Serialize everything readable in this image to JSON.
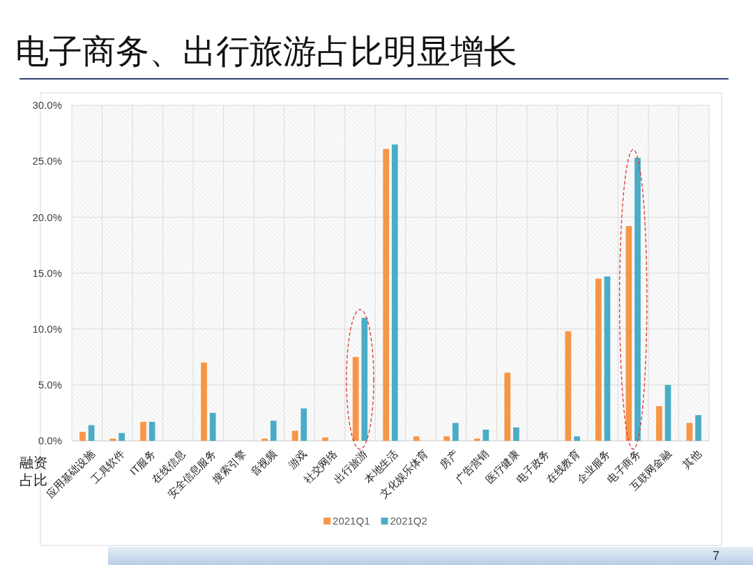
{
  "chart_data": {
    "type": "bar",
    "title": "电子商务、出行旅游占比明显增长",
    "ylabel": "融资占比",
    "categories": [
      "应用基础设施",
      "工具软件",
      "IT服务",
      "在线信息",
      "安全信息服务",
      "搜索引擎",
      "音视频",
      "游戏",
      "社交网络",
      "出行旅游",
      "本地生活",
      "文化娱乐体育",
      "房产",
      "广告营销",
      "医疗健康",
      "电子政务",
      "在线教育",
      "企业服务",
      "电子商务",
      "互联网金融",
      "其他"
    ],
    "series": [
      {
        "name": "2021Q1",
        "color": "#f79646",
        "values": [
          0.8,
          0.2,
          1.7,
          null,
          7.0,
          null,
          0.2,
          0.9,
          0.3,
          7.5,
          26.1,
          0.4,
          0.4,
          0.2,
          6.1,
          null,
          9.8,
          14.5,
          19.2,
          3.1,
          1.6
        ]
      },
      {
        "name": "2021Q2",
        "color": "#4bacc6",
        "values": [
          1.4,
          0.7,
          1.7,
          null,
          2.5,
          null,
          1.8,
          2.9,
          null,
          11.0,
          26.5,
          null,
          1.6,
          1.0,
          1.2,
          null,
          0.4,
          14.7,
          25.3,
          5.0,
          2.3
        ]
      }
    ],
    "ylim": [
      0,
      30
    ],
    "yticks": [
      {
        "value": 0,
        "label": "0.0%"
      },
      {
        "value": 5,
        "label": "5.0%"
      },
      {
        "value": 10,
        "label": "10.0%"
      },
      {
        "value": 15,
        "label": "15.0%"
      },
      {
        "value": 20,
        "label": "20.0%"
      },
      {
        "value": 25,
        "label": "25.0%"
      },
      {
        "value": 30,
        "label": "30.0%"
      }
    ],
    "grid": true,
    "legend": "bottom",
    "annotations": [
      "7"
    ]
  }
}
